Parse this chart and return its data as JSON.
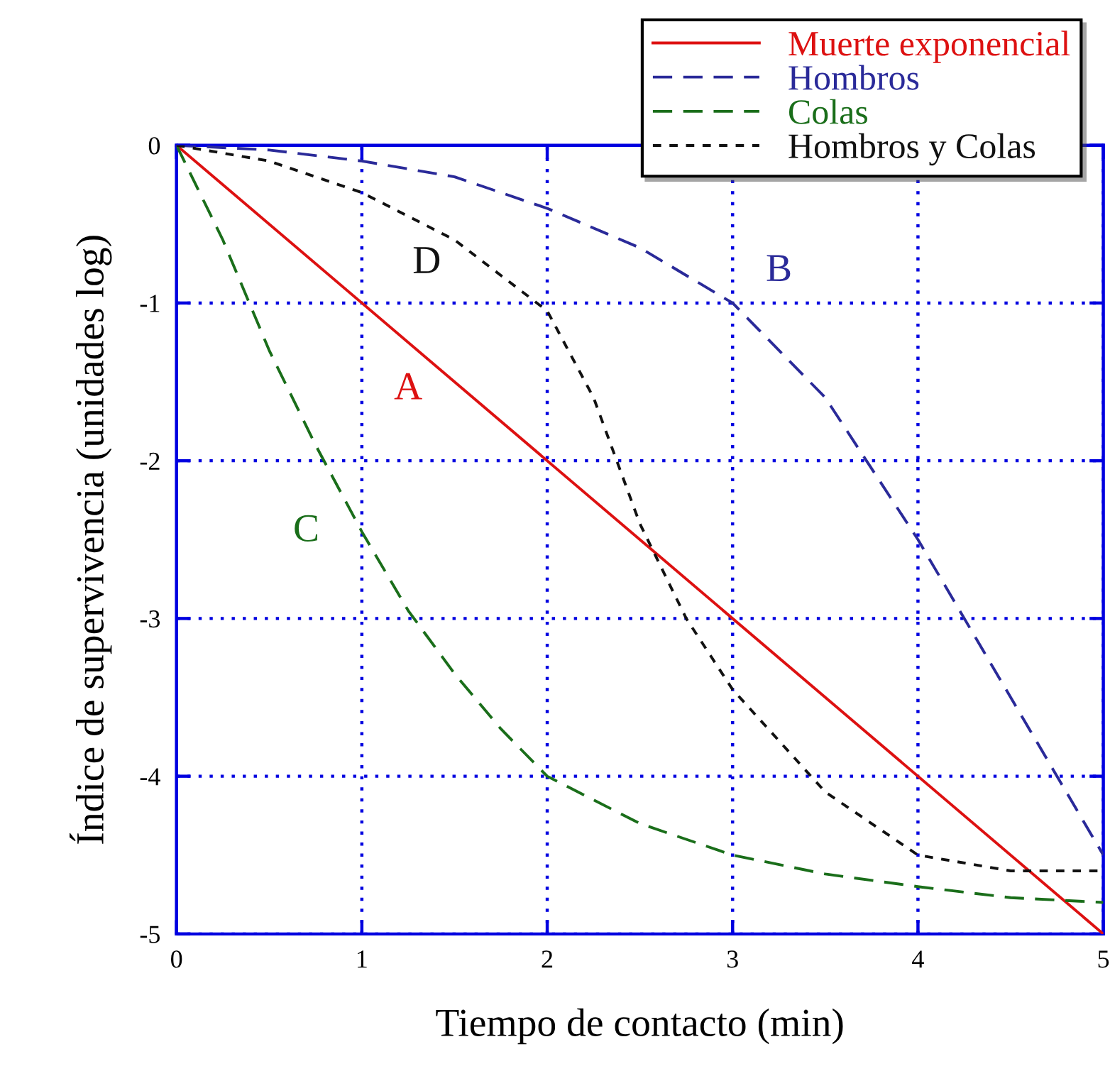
{
  "chart_data": {
    "type": "line",
    "xlabel": "Tiempo de contacto (min)",
    "ylabel": "Índice de supervivencia (unidades log)",
    "xlim": [
      0,
      5
    ],
    "ylim": [
      -5,
      0
    ],
    "xticks": [
      0,
      1,
      2,
      3,
      4,
      5
    ],
    "yticks": [
      {
        "value": 0,
        "label": "0"
      },
      {
        "value": -1,
        "label": "-1"
      },
      {
        "value": -2,
        "label": "-2"
      },
      {
        "value": -3,
        "label": "-3"
      },
      {
        "value": -4,
        "label": "-4"
      },
      {
        "value": -5,
        "label": "-5"
      }
    ],
    "grid": true,
    "legend": "top right",
    "marker": "none",
    "series": [
      {
        "name": "Muerte exponencial",
        "color": "#dd1111",
        "line_style": "solid",
        "x": [
          0,
          5
        ],
        "values": [
          0,
          -5
        ]
      },
      {
        "name": "Hombros",
        "color": "#2a2a99",
        "line_style": "dashed",
        "x": [
          0,
          0.5,
          1,
          1.5,
          2,
          2.5,
          3,
          3.5,
          4,
          4.5,
          5
        ],
        "values": [
          0,
          -0.03,
          -0.1,
          -0.2,
          -0.4,
          -0.65,
          -1,
          -1.6,
          -2.5,
          -3.5,
          -4.5
        ]
      },
      {
        "name": "Colas",
        "color": "#1a6e1a",
        "line_style": "dashed",
        "x": [
          0,
          0.25,
          0.5,
          0.75,
          1,
          1.25,
          1.5,
          1.75,
          2,
          2.5,
          3,
          3.5,
          4,
          4.5,
          5
        ],
        "values": [
          0,
          -0.6,
          -1.3,
          -1.9,
          -2.45,
          -2.95,
          -3.35,
          -3.7,
          -4.0,
          -4.3,
          -4.5,
          -4.62,
          -4.7,
          -4.77,
          -4.8
        ]
      },
      {
        "name": "Hombros y Colas",
        "color": "#111111",
        "line_style": "dotted",
        "x": [
          0,
          0.5,
          1,
          1.5,
          2,
          2.25,
          2.5,
          2.75,
          3,
          3.5,
          4,
          4.5,
          5
        ],
        "values": [
          0,
          -0.1,
          -0.3,
          -0.6,
          -1.05,
          -1.6,
          -2.4,
          -3.0,
          -3.45,
          -4.1,
          -4.5,
          -4.6,
          -4.6
        ]
      }
    ],
    "annotations": [
      "A",
      "B",
      "C",
      "D"
    ]
  }
}
